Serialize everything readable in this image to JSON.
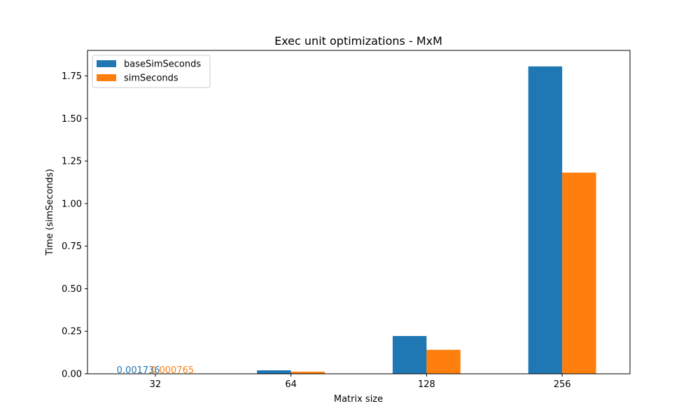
{
  "chart_data": {
    "type": "bar",
    "title": "Exec unit optimizations - MxM",
    "xlabel": "Matrix size",
    "ylabel": "Time (simSeconds)",
    "categories": [
      "32",
      "64",
      "128",
      "256"
    ],
    "series": [
      {
        "name": "baseSimSeconds",
        "color": "#1f77b4",
        "values": [
          0.001736,
          0.0205,
          0.222,
          1.806
        ]
      },
      {
        "name": "simSeconds",
        "color": "#ff7f0e",
        "values": [
          0.000765,
          0.0125,
          0.141,
          1.182
        ]
      }
    ],
    "ylim": [
      0,
      1.9
    ],
    "yticks": [
      "0.00",
      "0.25",
      "0.50",
      "0.75",
      "1.00",
      "1.25",
      "1.50",
      "1.75"
    ],
    "ytick_values": [
      0,
      0.25,
      0.5,
      0.75,
      1.0,
      1.25,
      1.5,
      1.75
    ],
    "annotations": [
      {
        "text": "0.001736",
        "category": "32",
        "series": "baseSimSeconds"
      },
      {
        "text": "0.000765",
        "category": "32",
        "series": "simSeconds"
      }
    ],
    "legend_position": "top-left",
    "grid": false
  }
}
